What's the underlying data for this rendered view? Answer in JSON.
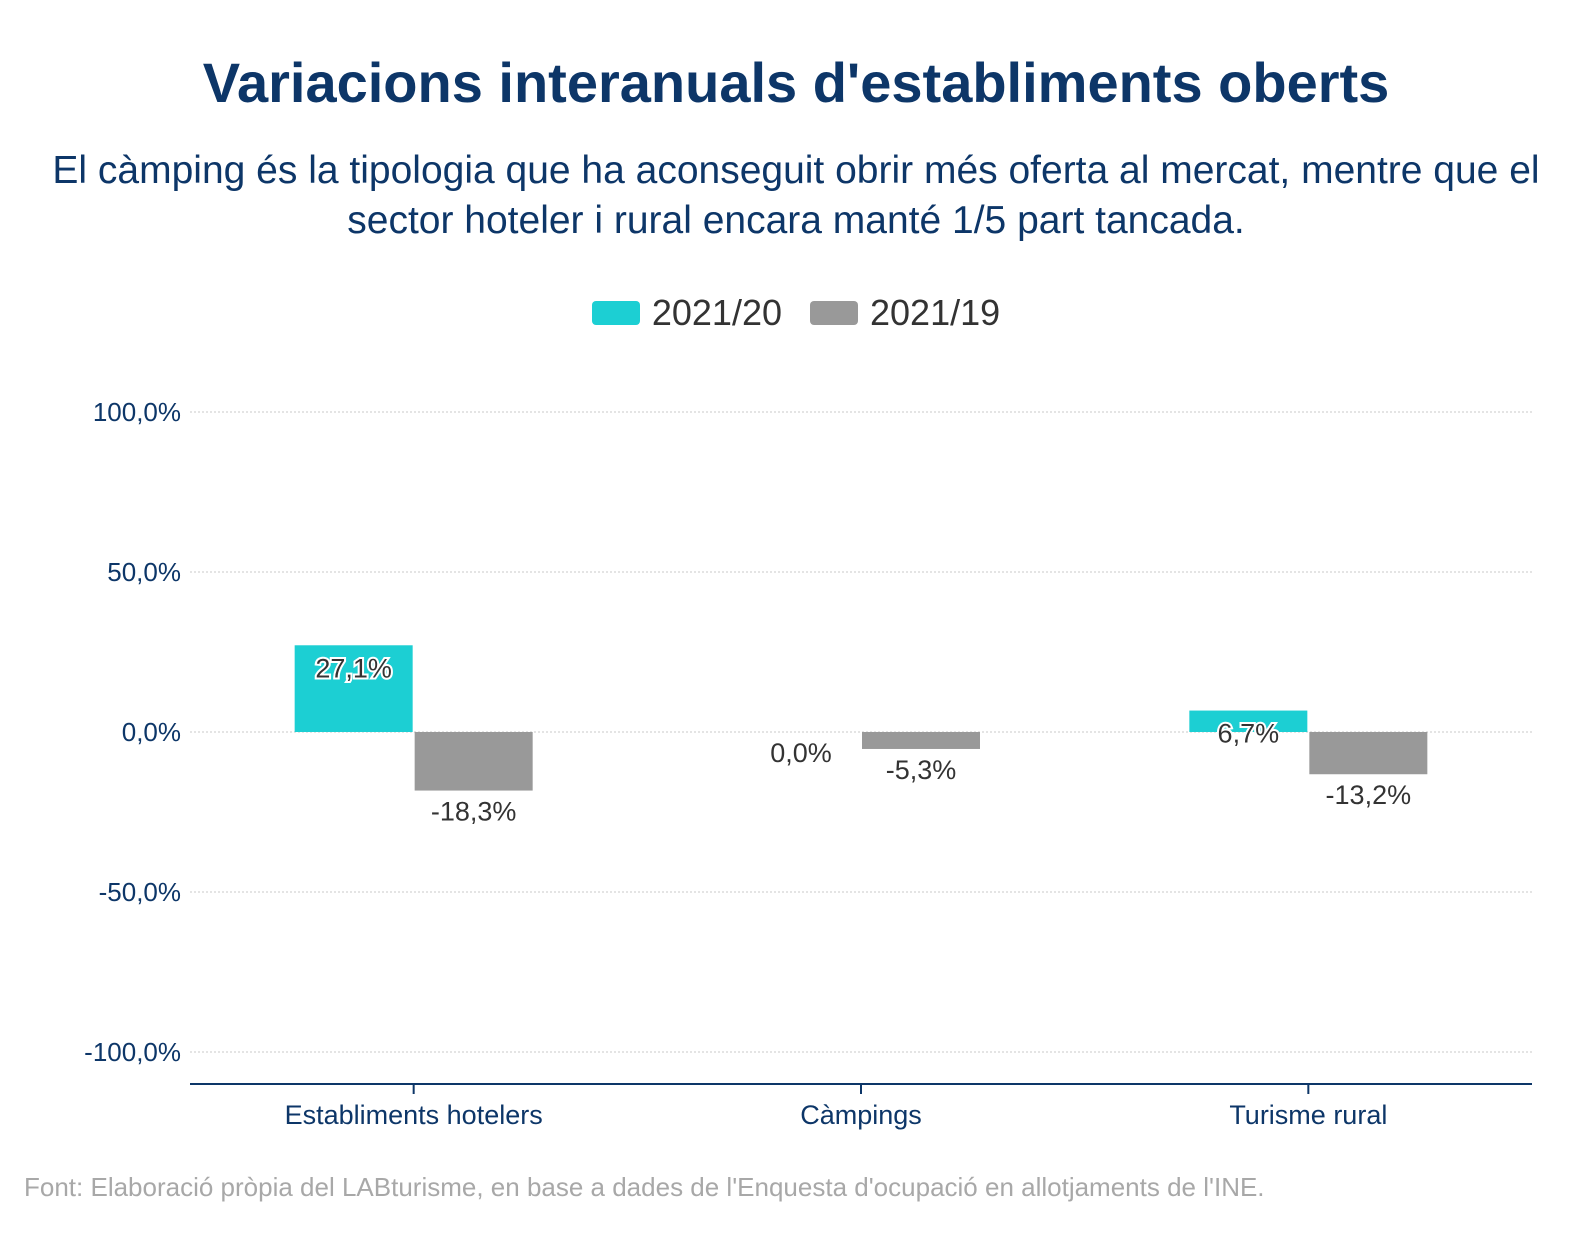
{
  "title": "Variacions interanuals d'establiments oberts",
  "subtitle": "El càmping és la tipologia que ha aconseguit obrir més oferta al mercat, mentre que el sector hoteler i rural encara manté 1/5 part tancada.",
  "source": "Font: Elaboració pròpia del LABturisme, en base a dades de l'Enquesta d'ocupació en allotjaments de l'INE.",
  "colors": {
    "series_2021_20": "#1ccfd3",
    "series_2021_19": "#999999",
    "text": "#0d3668"
  },
  "chart_data": {
    "type": "bar",
    "categories": [
      "Establiments hotelers",
      "Càmpings",
      "Turisme rural"
    ],
    "series": [
      {
        "name": "2021/20",
        "values": [
          27.1,
          0.0,
          6.7
        ],
        "labels": [
          "27,1%",
          "0,0%",
          "6,7%"
        ],
        "color": "#1ccfd3"
      },
      {
        "name": "2021/19",
        "values": [
          -18.3,
          -5.3,
          -13.2
        ],
        "labels": [
          "-18,3%",
          "-5,3%",
          "-13,2%"
        ],
        "color": "#999999"
      }
    ],
    "ylim": [
      -100,
      100
    ],
    "yticks": [
      100,
      50,
      0,
      -50,
      -100
    ],
    "ytick_labels": [
      "100,0%",
      "50,0%",
      "0,0%",
      "-50,0%",
      "-100,0%"
    ],
    "grid": true,
    "legend_position": "top-center"
  }
}
